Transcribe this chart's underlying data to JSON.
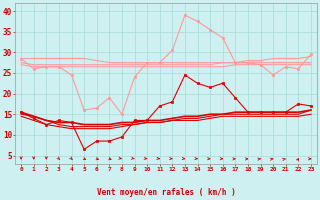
{
  "title": "Vent moyen/en rafales ( km/h )",
  "background_color": "#cff0f0",
  "grid_color": "#aadddd",
  "x_labels": [
    "0",
    "1",
    "2",
    "3",
    "4",
    "5",
    "6",
    "7",
    "8",
    "9",
    "10",
    "11",
    "12",
    "13",
    "14",
    "15",
    "16",
    "17",
    "18",
    "19",
    "20",
    "21",
    "22",
    "23"
  ],
  "ylim": [
    3,
    42
  ],
  "yticks": [
    5,
    10,
    15,
    20,
    25,
    30,
    35,
    40
  ],
  "series": [
    {
      "data": [
        28.5,
        28.5,
        28.5,
        28.5,
        28.5,
        28.5,
        28.0,
        27.5,
        27.5,
        27.5,
        27.5,
        27.5,
        27.5,
        27.5,
        27.5,
        27.5,
        27.5,
        27.5,
        28.0,
        28.0,
        28.5,
        28.5,
        28.5,
        29.0
      ],
      "color": "#ff9999",
      "linewidth": 0.8,
      "marker": null,
      "zorder": 2
    },
    {
      "data": [
        28.5,
        26.0,
        26.5,
        26.5,
        24.5,
        16.0,
        16.5,
        19.0,
        15.0,
        24.0,
        27.5,
        27.5,
        30.5,
        39.0,
        37.5,
        35.5,
        33.5,
        27.5,
        27.5,
        27.0,
        24.5,
        26.5,
        26.0,
        29.5
      ],
      "color": "#ff9999",
      "linewidth": 0.8,
      "marker": "s",
      "markersize": 1.8,
      "zorder": 3
    },
    {
      "data": [
        27.5,
        27.0,
        27.0,
        27.0,
        27.0,
        27.0,
        27.0,
        27.0,
        27.0,
        27.0,
        27.0,
        27.0,
        27.0,
        27.0,
        27.0,
        27.0,
        27.5,
        27.5,
        27.5,
        27.5,
        27.5,
        27.5,
        27.5,
        27.5
      ],
      "color": "#ff9999",
      "linewidth": 0.8,
      "marker": null,
      "zorder": 2
    },
    {
      "data": [
        27.0,
        26.5,
        26.5,
        26.5,
        26.5,
        26.5,
        26.5,
        26.5,
        26.5,
        26.5,
        26.5,
        26.5,
        26.5,
        26.5,
        26.5,
        26.5,
        26.5,
        27.0,
        27.0,
        27.0,
        27.0,
        27.0,
        27.0,
        27.0
      ],
      "color": "#ff9999",
      "linewidth": 0.8,
      "marker": null,
      "zorder": 2
    },
    {
      "data": [
        15.5,
        14.0,
        12.5,
        13.5,
        13.0,
        6.5,
        8.5,
        8.5,
        9.5,
        13.5,
        13.5,
        17.0,
        18.0,
        24.5,
        22.5,
        21.5,
        22.5,
        19.0,
        15.5,
        15.5,
        15.5,
        15.5,
        17.5,
        17.0
      ],
      "color": "#dd0000",
      "linewidth": 0.8,
      "marker": "s",
      "markersize": 1.8,
      "zorder": 5
    },
    {
      "data": [
        15.5,
        14.5,
        13.5,
        13.0,
        13.0,
        12.5,
        12.5,
        12.5,
        13.0,
        13.0,
        13.5,
        13.5,
        14.0,
        14.5,
        14.5,
        15.0,
        15.0,
        15.5,
        15.5,
        15.5,
        15.5,
        15.5,
        15.5,
        16.0
      ],
      "color": "#dd0000",
      "linewidth": 1.2,
      "marker": null,
      "zorder": 4
    },
    {
      "data": [
        15.0,
        14.5,
        13.5,
        12.5,
        12.0,
        12.0,
        12.0,
        12.0,
        12.5,
        12.5,
        13.0,
        13.0,
        13.5,
        14.0,
        14.0,
        14.5,
        15.0,
        15.0,
        15.0,
        15.0,
        15.0,
        15.0,
        15.0,
        16.0
      ],
      "color": "#dd0000",
      "linewidth": 0.8,
      "marker": null,
      "zorder": 4
    },
    {
      "data": [
        14.5,
        13.5,
        12.5,
        12.0,
        11.5,
        11.5,
        11.5,
        11.5,
        12.0,
        12.5,
        13.0,
        13.0,
        13.5,
        13.5,
        13.5,
        14.0,
        14.5,
        14.5,
        14.5,
        14.5,
        14.5,
        14.5,
        14.5,
        15.0
      ],
      "color": "#dd0000",
      "linewidth": 0.8,
      "marker": null,
      "zorder": 3
    }
  ],
  "arrow_color": "#cc0000",
  "xlabel_color": "#cc0000",
  "ylabel_color": "#cc0000",
  "tick_color": "#cc0000",
  "font_color": "#cc0000",
  "arrow_angles": [
    0,
    0,
    0,
    20,
    20,
    45,
    50,
    50,
    55,
    55,
    60,
    65,
    70,
    70,
    70,
    80,
    80,
    95,
    100,
    110,
    115,
    125,
    170,
    90
  ]
}
